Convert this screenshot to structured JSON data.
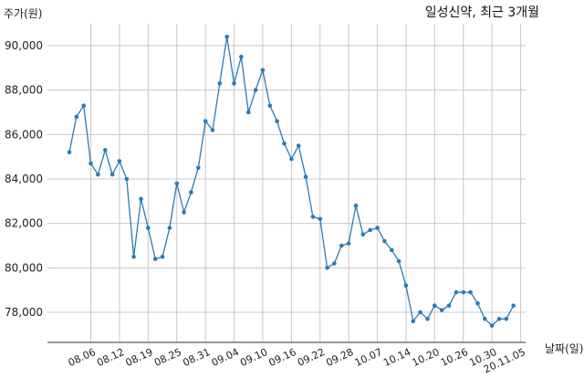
{
  "chart_data": {
    "type": "line",
    "title": "일성신약, 최근 3개월",
    "ylabel": "주가(원)",
    "xlabel": "날짜(일)",
    "ylim": [
      76800,
      91200
    ],
    "yticks": [
      78000,
      80000,
      82000,
      84000,
      86000,
      88000,
      90000
    ],
    "ytick_labels": [
      "78,000",
      "80,000",
      "82,000",
      "84,000",
      "86,000",
      "88,000",
      "90,000"
    ],
    "xtick_labels": [
      "08.06",
      "08.12",
      "08.19",
      "08.25",
      "08.31",
      "09.04",
      "09.10",
      "09.16",
      "09.22",
      "09.28",
      "10.07",
      "10.14",
      "10.20",
      "10.26",
      "10.30",
      "20.11.05"
    ],
    "xtick_positions": [
      3,
      7,
      11,
      15,
      19,
      23,
      27,
      31,
      35,
      39,
      43,
      47,
      51,
      55,
      59,
      63
    ],
    "grid": true,
    "color": "#2b7bb3",
    "series": [
      {
        "values": [
          85200,
          86800,
          87300,
          84700,
          84200,
          85300,
          84200,
          84800,
          84000,
          80500,
          83100,
          81800,
          80400,
          80500,
          81800,
          83800,
          82500,
          83400,
          84500,
          86600,
          86200,
          88300,
          90400,
          88300,
          89500,
          87000,
          88000,
          88900,
          87300,
          86600,
          85600,
          84900,
          85500,
          84100,
          82300,
          82200,
          80000,
          80200,
          81000,
          81100,
          82800,
          81500,
          81700,
          81800,
          81200,
          80800,
          80300,
          79200,
          77600,
          78000,
          77700,
          78300,
          78100,
          78300,
          78900,
          78900,
          78900,
          78400,
          77700,
          77400,
          77700,
          77700,
          78300
        ]
      }
    ]
  }
}
